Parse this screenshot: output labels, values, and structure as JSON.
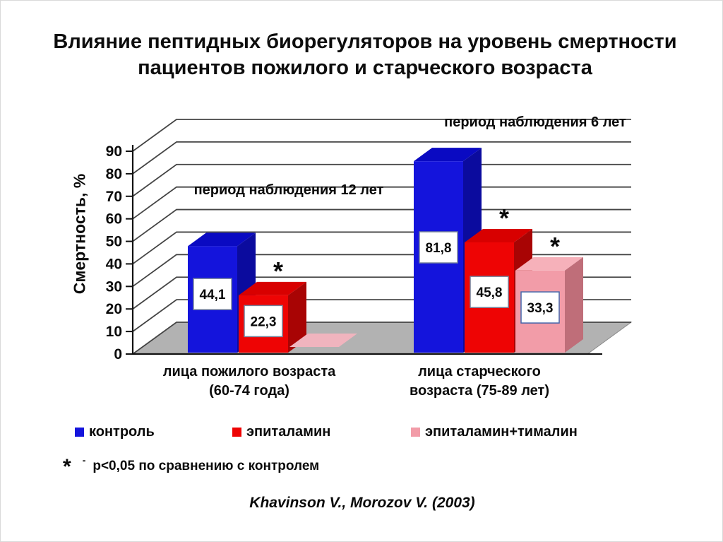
{
  "slide": {
    "title_line1": "Влияние пептидных биорегуляторов на уровень смертности",
    "title_line2": "пациентов пожилого и старческого возраста",
    "citation": "Khavinson V., Morozov V. (2003)",
    "footnote": {
      "symbol": "*",
      "dash": "-",
      "text": "p<0,05 по сравнению с контролем"
    }
  },
  "chart_data": {
    "type": "bar",
    "variant": "3d-column",
    "ylabel": "Смертность, %",
    "ylim": [
      0,
      90
    ],
    "yticks": [
      0,
      10,
      20,
      30,
      40,
      50,
      60,
      70,
      80,
      90
    ],
    "grid": true,
    "legend_position": "bottom",
    "annotations": [
      {
        "text": "период наблюдения 12 лет",
        "group": 0
      },
      {
        "text": "период наблюдения 6 лет",
        "group": 1
      }
    ],
    "categories": [
      {
        "line1": "лица пожилого возраста",
        "line2": "(60-74 года)"
      },
      {
        "line1": "лица старческого",
        "line2": "возраста (75-89 лет)"
      }
    ],
    "series": [
      {
        "name": "контроль",
        "values": [
          44.1,
          81.8
        ],
        "labels": [
          "44,1",
          "81,8"
        ],
        "significant": [
          false,
          false
        ],
        "colors": {
          "front": "#1414DC",
          "top": "#0A0AC2",
          "side": "#0B0B9E"
        }
      },
      {
        "name": "эпиталамин",
        "values": [
          22.3,
          45.8
        ],
        "labels": [
          "22,3",
          "45,8"
        ],
        "significant": [
          true,
          true
        ],
        "colors": {
          "front": "#EE0404",
          "top": "#D80000",
          "side": "#A80404"
        }
      },
      {
        "name": "эпиталамин+тималин",
        "values": [
          null,
          33.3
        ],
        "labels": [
          null,
          "33,3"
        ],
        "significant": [
          false,
          true
        ],
        "colors": {
          "front": "#F29CA8",
          "top": "#F6B1BA",
          "side": "#BF6E79",
          "zero_patch": "#F0B4BE"
        }
      }
    ],
    "style": {
      "floor": "#B2B2B2",
      "floor_edge": "#8A8A8A",
      "gridline": "#444444",
      "axis": "#111111",
      "label_box_fill": "#FFFFFF",
      "label_box_border": "#75829B",
      "label_box_border_alt": "#4466AA",
      "significance_marker": "*"
    }
  }
}
